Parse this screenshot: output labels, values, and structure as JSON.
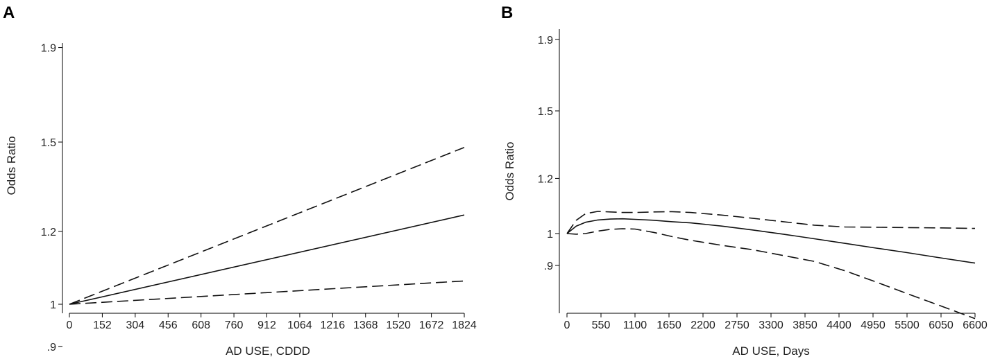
{
  "chart_data": [
    {
      "type": "line",
      "panel_label": "A",
      "xlabel": "AD USE, CDDD",
      "ylabel": "Odds Ratio",
      "y_scale": "log",
      "xlim": [
        0,
        1824
      ],
      "ylim": [
        0.9,
        1.9
      ],
      "x_ticks": [
        0,
        152,
        304,
        456,
        608,
        760,
        912,
        1064,
        1216,
        1368,
        1520,
        1672,
        1824
      ],
      "x_tick_labels": [
        "0",
        "152",
        "304",
        "456",
        "608",
        "760",
        "912",
        "1064",
        "1216",
        "1368",
        "1520",
        "1672",
        "1824"
      ],
      "y_ticks": [
        0.9,
        1,
        1.2,
        1.5,
        1.9
      ],
      "y_tick_labels": [
        ".9",
        "1",
        "1.2",
        "1.5",
        "1.9"
      ],
      "grid": false,
      "series": [
        {
          "style": "solid",
          "x": [
            0,
            1824
          ],
          "y": [
            1.0,
            1.25
          ]
        },
        {
          "style": "dashed",
          "x": [
            0,
            1824
          ],
          "y": [
            1.0,
            1.48
          ]
        },
        {
          "style": "dashed",
          "x": [
            0,
            1824
          ],
          "y": [
            1.0,
            1.06
          ]
        }
      ]
    },
    {
      "type": "line",
      "panel_label": "B",
      "xlabel": "AD USE, Days",
      "ylabel": "Odds Ratio",
      "y_scale": "log",
      "xlim": [
        0,
        6600
      ],
      "ylim": [
        0.8,
        1.9
      ],
      "x_ticks": [
        0,
        550,
        1100,
        1650,
        2200,
        2750,
        3300,
        3850,
        4400,
        4950,
        5500,
        6050,
        6600
      ],
      "x_tick_labels": [
        "0",
        "550",
        "1100",
        "1650",
        "2200",
        "2750",
        "3300",
        "3850",
        "4400",
        "4950",
        "5500",
        "6050",
        "6600"
      ],
      "y_ticks": [
        0.9,
        1,
        1.2,
        1.5,
        1.9
      ],
      "y_tick_labels": [
        ".9",
        "1",
        "1.2",
        "1.5",
        "1.9"
      ],
      "grid": false,
      "series": [
        {
          "style": "solid",
          "x": [
            0,
            150,
            300,
            500,
            700,
            900,
            1100,
            1400,
            1700,
            2000,
            2500,
            3000,
            3500,
            4000,
            4500,
            5000,
            5500,
            6000,
            6600
          ],
          "y": [
            1.0,
            1.025,
            1.038,
            1.046,
            1.049,
            1.05,
            1.048,
            1.045,
            1.04,
            1.036,
            1.025,
            1.012,
            0.998,
            0.983,
            0.968,
            0.953,
            0.939,
            0.924,
            0.907
          ]
        },
        {
          "style": "dashed",
          "x": [
            0,
            150,
            300,
            500,
            700,
            900,
            1100,
            1400,
            1700,
            2000,
            2500,
            3000,
            3500,
            4000,
            4500,
            5000,
            5500,
            6000,
            6600
          ],
          "y": [
            1.0,
            1.045,
            1.068,
            1.076,
            1.074,
            1.072,
            1.072,
            1.074,
            1.075,
            1.072,
            1.063,
            1.052,
            1.04,
            1.028,
            1.022,
            1.021,
            1.02,
            1.019,
            1.017
          ]
        },
        {
          "style": "dashed",
          "x": [
            0,
            150,
            300,
            500,
            700,
            900,
            1100,
            1400,
            1700,
            2000,
            2500,
            3000,
            3500,
            4000,
            4500,
            5000,
            5500,
            6000,
            6600
          ],
          "y": [
            1.0,
            0.998,
            1.0,
            1.008,
            1.014,
            1.016,
            1.015,
            1.004,
            0.99,
            0.978,
            0.962,
            0.948,
            0.93,
            0.912,
            0.884,
            0.852,
            0.82,
            0.79,
            0.755
          ]
        }
      ]
    }
  ]
}
